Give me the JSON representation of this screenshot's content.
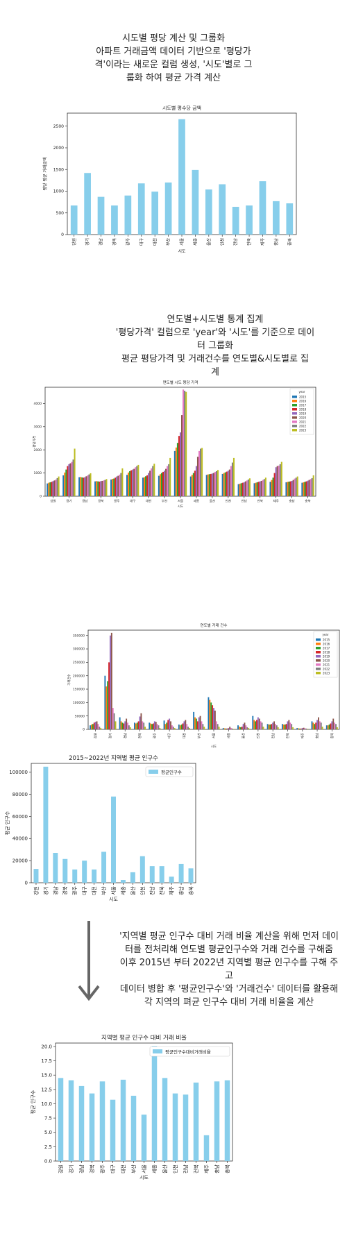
{
  "section1": {
    "lines": [
      "시도별 평당 계산 및 그룹화",
      "아파트 거래금액 데이터 기반으로 '평당가",
      "격'이라는 새로운 컬럼 생성, '시도'별로 그",
      "룹화 하여 평균 가격 계산"
    ]
  },
  "section2": {
    "lines": [
      "연도별+시도별 통계 집계",
      "'평당가격' 컬럼으로 'year'와 '시도'를 기준으로 데이",
      "터 그룹화",
      "평균 평당가격 및 거래건수를 연도별&시도별로 집",
      "계"
    ]
  },
  "section3": {
    "lines": [
      "'지역별 평균 인구수 대비 거래 비율 계산을 위해 먼저 데이",
      "터를 전처리해 연도별 평균인구수와 거래 건수를 구해줌",
      "이후 2015년 부터 2022년 지역별 평균 인구수를 구해 주",
      "고",
      "데이터 병합 후 '평균인구수'와 '거래건수' 데이터를 활용해",
      "각 지역의 펴균 인구수 대비 거래 비율을 계산"
    ]
  },
  "colors": {
    "bar": "#87CEEB",
    "years": [
      "#1f77b4",
      "#ff7f0e",
      "#2ca02c",
      "#d62728",
      "#9467bd",
      "#8c564b",
      "#e377c2",
      "#7f7f7f",
      "#bcbd22"
    ],
    "arrow": "#666666"
  },
  "chart_data": [
    {
      "id": "price",
      "type": "bar",
      "title": "시도별 평수당 금액",
      "xlabel": "시도",
      "ylabel": "평당 평균 거래금액",
      "categories": [
        "강원",
        "경기",
        "경남",
        "경북",
        "광주",
        "대구",
        "대전",
        "부산",
        "서울",
        "세종",
        "울산",
        "인천",
        "전남",
        "전북",
        "제주",
        "충남",
        "충북"
      ],
      "values": [
        670,
        1420,
        870,
        670,
        900,
        1180,
        990,
        1200,
        2660,
        1490,
        1040,
        1160,
        640,
        670,
        1230,
        770,
        720
      ],
      "ylim": [
        0,
        2800
      ],
      "yticks": [
        0,
        500,
        1000,
        1500,
        2000,
        2500
      ],
      "grid": false
    },
    {
      "id": "yearly_price",
      "type": "bar",
      "title": "연도별 시도 평당 가격",
      "xlabel": "시도",
      "ylabel": "평당가격",
      "legend_title": "year",
      "legend": "top-right",
      "categories": [
        "강원",
        "경기",
        "경남",
        "경북",
        "광주",
        "대구",
        "대전",
        "부산",
        "서울",
        "세종",
        "울산",
        "인천",
        "전남",
        "전북",
        "제주",
        "충남",
        "충북"
      ],
      "series": [
        {
          "name": "2015",
          "values": [
            550,
            900,
            820,
            640,
            720,
            920,
            800,
            880,
            1950,
            850,
            920,
            960,
            520,
            560,
            620,
            600,
            580
          ]
        },
        {
          "name": "2016",
          "values": [
            580,
            1020,
            830,
            650,
            750,
            1020,
            820,
            950,
            2100,
            920,
            940,
            1000,
            540,
            580,
            700,
            620,
            600
          ]
        },
        {
          "name": "2017",
          "values": [
            600,
            1150,
            810,
            640,
            760,
            1080,
            860,
            1000,
            2300,
            1000,
            950,
            1030,
            560,
            600,
            800,
            630,
            620
          ]
        },
        {
          "name": "2018",
          "values": [
            620,
            1300,
            800,
            630,
            800,
            1120,
            900,
            1050,
            2600,
            1100,
            960,
            1060,
            580,
            620,
            1000,
            640,
            640
          ]
        },
        {
          "name": "2019",
          "values": [
            650,
            1380,
            820,
            650,
            850,
            1150,
            1000,
            1100,
            2750,
            1300,
            980,
            1100,
            600,
            640,
            1250,
            660,
            670
          ]
        },
        {
          "name": "2020",
          "values": [
            680,
            1420,
            860,
            660,
            880,
            1180,
            1100,
            1180,
            3500,
            1700,
            1000,
            1150,
            640,
            660,
            1300,
            700,
            700
          ]
        },
        {
          "name": "2021",
          "values": [
            720,
            1480,
            900,
            680,
            930,
            1250,
            1200,
            1300,
            4600,
            1950,
            1050,
            1300,
            680,
            700,
            1320,
            760,
            740
          ]
        },
        {
          "name": "2022",
          "values": [
            780,
            1580,
            940,
            700,
            1000,
            1300,
            1300,
            1380,
            4550,
            2050,
            1080,
            1450,
            720,
            740,
            1380,
            800,
            780
          ]
        },
        {
          "name": "2023",
          "values": [
            850,
            2050,
            990,
            740,
            1200,
            1350,
            1400,
            1650,
            4500,
            2080,
            1130,
            1650,
            770,
            800,
            1480,
            850,
            900
          ]
        }
      ],
      "ylim": [
        0,
        4700
      ],
      "yticks": [
        0,
        1000,
        2000,
        3000,
        4000
      ],
      "grid": false
    },
    {
      "id": "yearly_count",
      "type": "bar",
      "title": "연도별 거래 건수",
      "xlabel": "시도",
      "ylabel": "거래건수",
      "legend_title": "year",
      "legend": "top-right",
      "categories": [
        "강원",
        "경기",
        "경남",
        "경북",
        "광주",
        "대구",
        "대전",
        "부산",
        "서울",
        "세종",
        "울산",
        "인천",
        "전남",
        "전북",
        "제주",
        "충남",
        "충북"
      ],
      "series": [
        {
          "name": "2015",
          "values": [
            15000,
            200000,
            45000,
            25000,
            25000,
            33000,
            18000,
            65000,
            120000,
            5000,
            15000,
            50000,
            20000,
            20000,
            5000,
            30000,
            15000
          ]
        },
        {
          "name": "2016",
          "values": [
            18000,
            160000,
            30000,
            22000,
            22000,
            20000,
            15000,
            45000,
            110000,
            4000,
            10000,
            35000,
            18000,
            18000,
            4000,
            25000,
            15000
          ]
        },
        {
          "name": "2017",
          "values": [
            20000,
            180000,
            25000,
            25000,
            20000,
            25000,
            18000,
            40000,
            100000,
            3000,
            8000,
            30000,
            18000,
            18000,
            3000,
            20000,
            18000
          ]
        },
        {
          "name": "2018",
          "values": [
            25000,
            250000,
            22000,
            30000,
            22000,
            35000,
            22000,
            30000,
            90000,
            3000,
            10000,
            35000,
            20000,
            20000,
            3000,
            25000,
            22000
          ]
        },
        {
          "name": "2019",
          "values": [
            28000,
            350000,
            30000,
            48000,
            30000,
            40000,
            30000,
            45000,
            80000,
            5000,
            20000,
            45000,
            25000,
            30000,
            5000,
            35000,
            30000
          ]
        },
        {
          "name": "2020",
          "values": [
            30000,
            360000,
            40000,
            60000,
            28000,
            30000,
            35000,
            50000,
            70000,
            10000,
            25000,
            40000,
            30000,
            35000,
            6000,
            45000,
            40000
          ]
        },
        {
          "name": "2021",
          "values": [
            20000,
            80000,
            25000,
            30000,
            20000,
            15000,
            20000,
            30000,
            30000,
            5000,
            15000,
            30000,
            20000,
            25000,
            4000,
            30000,
            25000
          ]
        },
        {
          "name": "2022",
          "values": [
            10000,
            60000,
            15000,
            25000,
            15000,
            10000,
            10000,
            20000,
            20000,
            3000,
            8000,
            25000,
            15000,
            20000,
            3000,
            25000,
            20000
          ]
        },
        {
          "name": "2023",
          "values": [
            5000,
            30000,
            8000,
            10000,
            5000,
            5000,
            5000,
            10000,
            10000,
            2000,
            5000,
            10000,
            8000,
            8000,
            2000,
            10000,
            8000
          ]
        }
      ],
      "ylim": [
        0,
        370000
      ],
      "yticks": [
        0,
        50000,
        100000,
        150000,
        200000,
        250000,
        300000,
        350000
      ],
      "grid": false
    },
    {
      "id": "population",
      "type": "bar",
      "title": "2015~2022년 지역별 평균 인구수",
      "xlabel": "시도",
      "ylabel": "평균 인구수",
      "legend": "top-right",
      "series": [
        {
          "name": "평균인구수"
        }
      ],
      "categories": [
        "강원",
        "경기",
        "경남",
        "경북",
        "광주",
        "대구",
        "대전",
        "부산",
        "서울",
        "세종",
        "울산",
        "인천",
        "전남",
        "전북",
        "제주",
        "충남",
        "충북"
      ],
      "values": [
        12500,
        105000,
        27000,
        21500,
        12000,
        20000,
        12000,
        28000,
        78000,
        2500,
        9500,
        24000,
        15000,
        15000,
        5500,
        17000,
        13000
      ],
      "ylim": [
        0,
        108000
      ],
      "yticks": [
        0,
        20000,
        40000,
        60000,
        80000,
        100000
      ],
      "grid": false
    },
    {
      "id": "ratio",
      "type": "bar",
      "title": "지역별 평균 인구수 대비 거래 비율",
      "xlabel": "시도",
      "ylabel": "평균 인구수",
      "legend": "top-right",
      "series": [
        {
          "name": "평균인구수대비거래비율"
        }
      ],
      "categories": [
        "강원",
        "경기",
        "경남",
        "경북",
        "광주",
        "대구",
        "대전",
        "부산",
        "서울",
        "세종",
        "울산",
        "인천",
        "전남",
        "전북",
        "제주",
        "충남",
        "충북"
      ],
      "values": [
        14.5,
        14.1,
        13.1,
        11.8,
        13.9,
        10.7,
        14.2,
        11.4,
        8.1,
        20.1,
        14.5,
        11.8,
        11.6,
        13.7,
        4.5,
        13.9,
        14.1
      ],
      "ylim": [
        0,
        20.6
      ],
      "yticks": [
        0.0,
        2.5,
        5.0,
        7.5,
        10.0,
        12.5,
        15.0,
        17.5,
        20.0
      ],
      "grid": false
    }
  ]
}
